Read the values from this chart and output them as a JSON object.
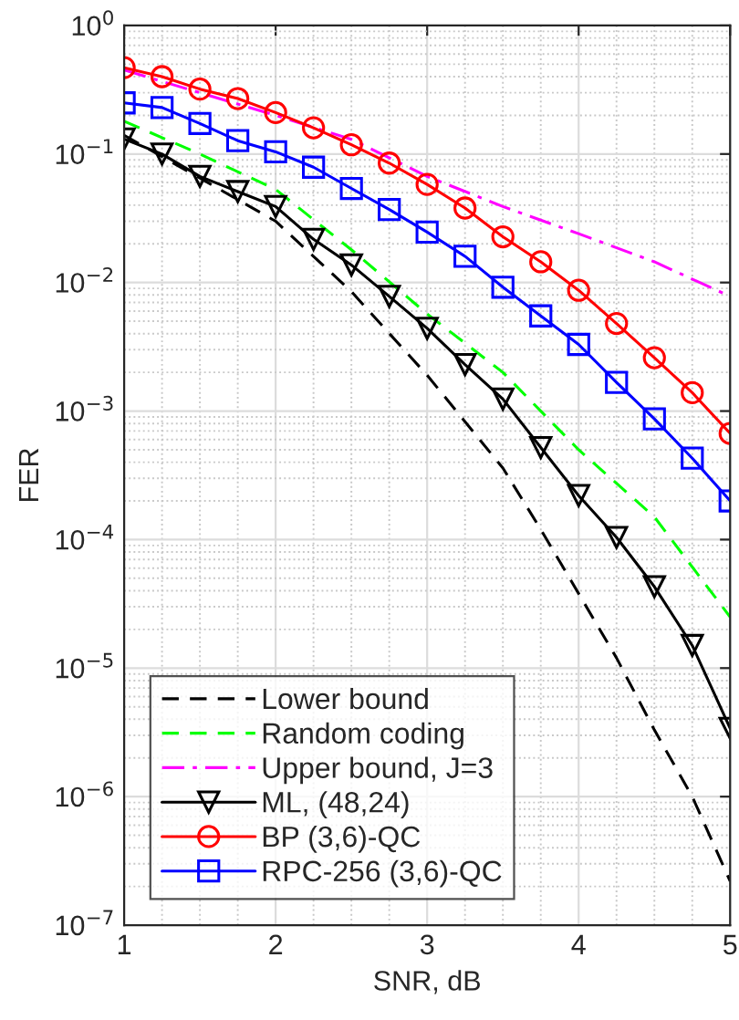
{
  "chart_data": {
    "type": "line",
    "xlabel": "SNR, dB",
    "ylabel": "FER",
    "log": "y",
    "grid": true,
    "legend": "bottom left",
    "xlim": [
      1,
      5
    ],
    "xticks": [
      1,
      2,
      3,
      4,
      5
    ],
    "ylim": [
      1e-07,
      1
    ],
    "yticks": [
      {
        "value": 1e-07,
        "label": "10$^{−7}$"
      },
      {
        "value": 1e-06,
        "label": "10$^{−6}$"
      },
      {
        "value": 1e-05,
        "label": "10$^{−5}$"
      },
      {
        "value": 0.0001,
        "label": "10$^{−4}$"
      },
      {
        "value": 0.001,
        "label": "10$^{−3}$"
      },
      {
        "value": 0.01,
        "label": "10$^{−2}$"
      },
      {
        "value": 0.1,
        "label": "10$^{−1}$"
      },
      {
        "value": 1,
        "label": "10$^{0}$"
      }
    ],
    "series": [
      {
        "name": "Lower bound",
        "color": "#000000",
        "line_style": "dashed",
        "marker": "none",
        "x": [
          1,
          1.5,
          2,
          2.5,
          3,
          3.5,
          3.75,
          4,
          4.25,
          4.5,
          4.75,
          5
        ],
        "values": [
          0.14,
          0.065,
          0.03,
          0.0085,
          0.0019,
          0.00036,
          0.00012,
          3.8e-05,
          1.2e-05,
          3.3e-06,
          1e-06,
          2.2e-07
        ]
      },
      {
        "name": "Random coding",
        "color": "#00ff00",
        "line_style": "dashed",
        "marker": "none",
        "x": [
          1,
          1.5,
          2,
          2.5,
          3,
          3.5,
          4,
          4.5,
          5
        ],
        "values": [
          0.18,
          0.1,
          0.053,
          0.018,
          0.0057,
          0.002,
          0.0005,
          0.00015,
          2.5e-05
        ]
      },
      {
        "name": "Upper bound, J=3",
        "color": "#ff00ff",
        "line_style": "dashdot",
        "marker": "none",
        "x": [
          1,
          2,
          2.5,
          3,
          3.5,
          4,
          4.5,
          5
        ],
        "values": [
          0.45,
          0.2,
          0.13,
          0.067,
          0.039,
          0.024,
          0.0145,
          0.0078
        ]
      },
      {
        "name": "ML, (48,24)",
        "color": "#000000",
        "line_style": "solid",
        "marker": "triangle",
        "x": [
          1,
          1.25,
          1.5,
          1.75,
          2,
          2.25,
          2.5,
          2.75,
          3,
          3.25,
          3.5,
          3.75,
          4,
          4.25,
          4.5,
          4.75,
          5
        ],
        "values": [
          0.131,
          0.1,
          0.067,
          0.051,
          0.039,
          0.0217,
          0.0137,
          0.0078,
          0.0044,
          0.0023,
          0.00124,
          0.00052,
          0.00022,
          0.000104,
          4.3e-05,
          1.5e-05,
          3.4e-06
        ]
      },
      {
        "name": "BP (3,6)-QC",
        "color": "#ff0000",
        "line_style": "solid",
        "marker": "circle",
        "x": [
          1,
          1.25,
          1.5,
          1.75,
          2,
          2.25,
          2.5,
          2.75,
          3,
          3.25,
          3.5,
          3.75,
          4,
          4.25,
          4.5,
          4.75,
          5
        ],
        "values": [
          0.47,
          0.4,
          0.32,
          0.27,
          0.21,
          0.16,
          0.118,
          0.085,
          0.058,
          0.038,
          0.0227,
          0.0145,
          0.0087,
          0.0048,
          0.0026,
          0.00139,
          0.00067
        ]
      },
      {
        "name": "RPC-256 (3,6)-QC",
        "color": "#0000ff",
        "line_style": "solid",
        "marker": "square",
        "x": [
          1,
          1.25,
          1.5,
          1.75,
          2,
          2.25,
          2.5,
          2.75,
          3,
          3.25,
          3.5,
          3.75,
          4,
          4.25,
          4.5,
          4.75,
          5
        ],
        "values": [
          0.25,
          0.23,
          0.173,
          0.127,
          0.104,
          0.079,
          0.054,
          0.037,
          0.0247,
          0.016,
          0.0092,
          0.0055,
          0.0033,
          0.00167,
          0.00087,
          0.00043,
          0.0002
        ]
      }
    ]
  }
}
